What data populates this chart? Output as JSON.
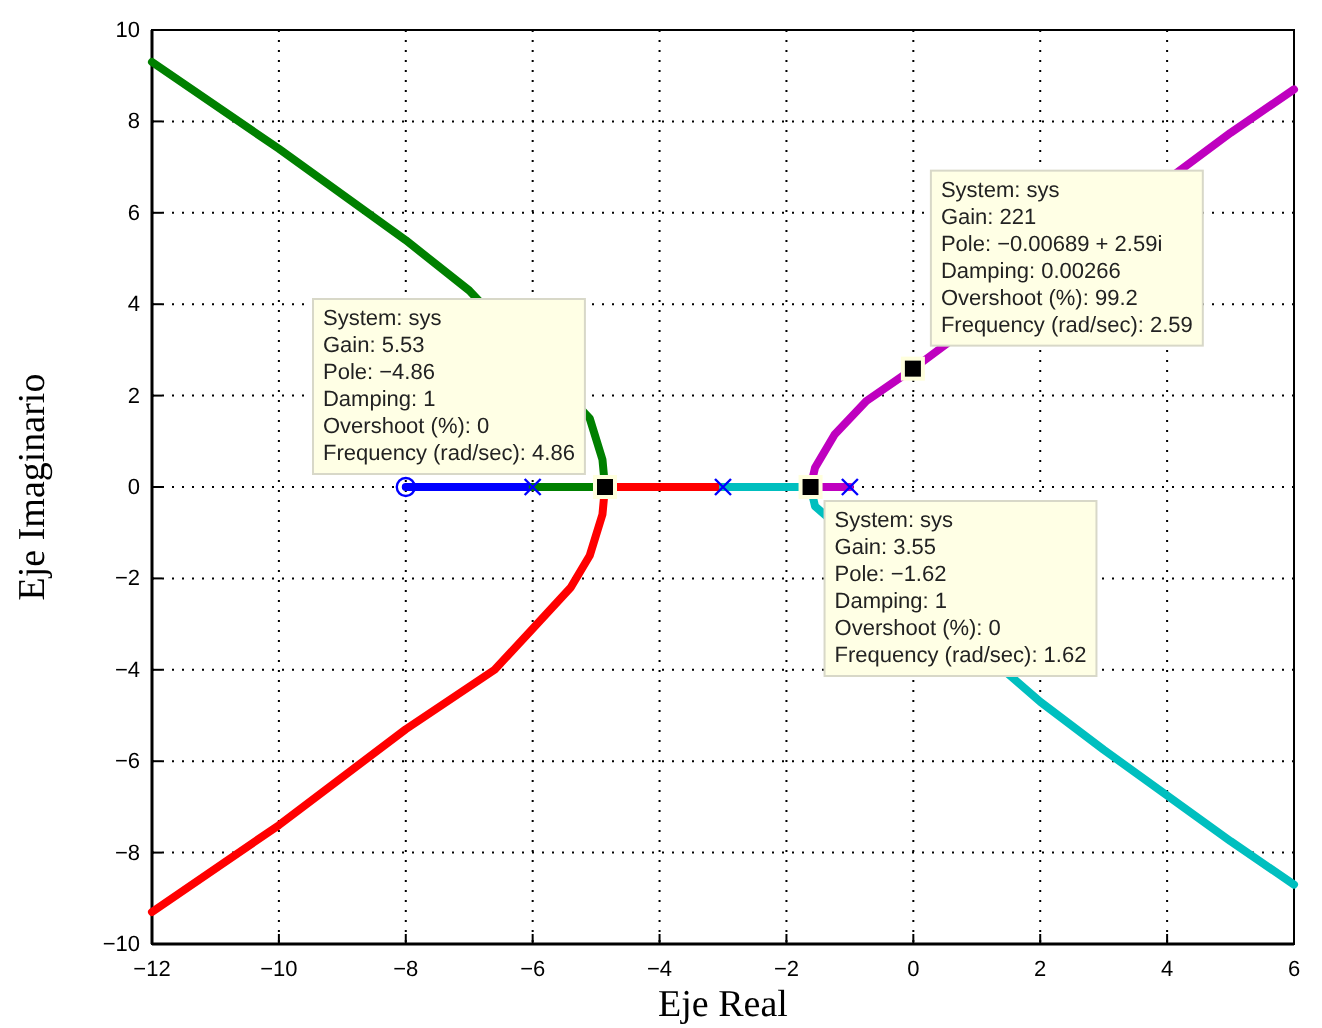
{
  "chart_data": {
    "type": "line",
    "xlabel": "Eje Real",
    "ylabel": "Eje Imaginario",
    "xlim": [
      -12,
      6
    ],
    "ylim": [
      -10,
      10
    ],
    "xticks": [
      -12,
      -10,
      -8,
      -6,
      -4,
      -2,
      0,
      2,
      4,
      6
    ],
    "yticks": [
      -10,
      -8,
      -6,
      -4,
      -2,
      0,
      2,
      4,
      6,
      8,
      10
    ],
    "grid": true,
    "line_style": "solid",
    "series": [
      {
        "color": "#0000ff",
        "x": [
          -6,
          -8
        ],
        "values": [
          0,
          0
        ]
      },
      {
        "color": "#008000",
        "x": [
          -6,
          -4.86,
          -4.9,
          -5.1,
          -5.4,
          -6,
          -6.6,
          -7,
          -8,
          -10,
          -12
        ],
        "values": [
          0,
          0,
          0.6,
          1.5,
          null,
          null,
          null,
          4.3,
          5.4,
          7.4,
          9.3
        ]
      },
      {
        "color": "#ff0000",
        "x": [
          -3,
          -4.86,
          -4.9,
          -5.1,
          -5.4,
          -6,
          -6.6,
          -8,
          -10,
          -12
        ],
        "values": [
          0,
          0,
          -0.6,
          -1.5,
          -2.2,
          -3.1,
          -4,
          -5.3,
          -7.4,
          -9.3
        ]
      },
      {
        "color": "#00bfbf",
        "x": [
          -3,
          -1.62,
          -1.55,
          -1.24,
          -0.74,
          0,
          1,
          2,
          3,
          4,
          5,
          6
        ],
        "values": [
          0,
          0,
          -0.42,
          null,
          null,
          null,
          null,
          -4.7,
          -5.75,
          -6.75,
          -7.75,
          -8.7
        ]
      },
      {
        "color": "#bf00bf",
        "x": [
          -1,
          -1.62,
          -1.55,
          -1.24,
          -0.74,
          0,
          1,
          2,
          3,
          4,
          5,
          6
        ],
        "values": [
          0,
          0,
          0.42,
          1.15,
          1.88,
          2.59,
          null,
          null,
          null,
          null,
          7.75,
          8.7
        ]
      },
      {
        "type": "scatter",
        "marker": "cross",
        "color": "#0000ff",
        "x": [
          -6,
          -3,
          -1
        ],
        "values": [
          0,
          0,
          0
        ]
      },
      {
        "type": "scatter",
        "marker": "circle",
        "color": "#0000ff",
        "x": [
          -8
        ],
        "values": [
          0
        ]
      },
      {
        "type": "scatter",
        "marker": "square",
        "color": "#000000",
        "x": [
          -4.86,
          -0.00689,
          -1.62
        ],
        "values": [
          0,
          2.59,
          0
        ]
      }
    ],
    "annotations": [
      {
        "text": "System: sys\nGain: 5.53\nPole: −4.86\nDamping: 1\nOvershoot (%): 0\nFrequency (rad/sec): 4.86",
        "x": -4.86,
        "y": 0
      },
      {
        "text": "System: sys\nGain: 221\nPole: −0.00689 + 2.59i\nDamping: 0.00266\nOvershoot (%): 99.2\nFrequency (rad/sec): 2.59",
        "x": -0.00689,
        "y": 2.59
      },
      {
        "text": "System: sys\nGain: 3.55\nPole: −1.62\nDamping: 1\nOvershoot (%): 0\nFrequency (rad/sec): 1.62",
        "x": -1.62,
        "y": 0
      }
    ]
  }
}
